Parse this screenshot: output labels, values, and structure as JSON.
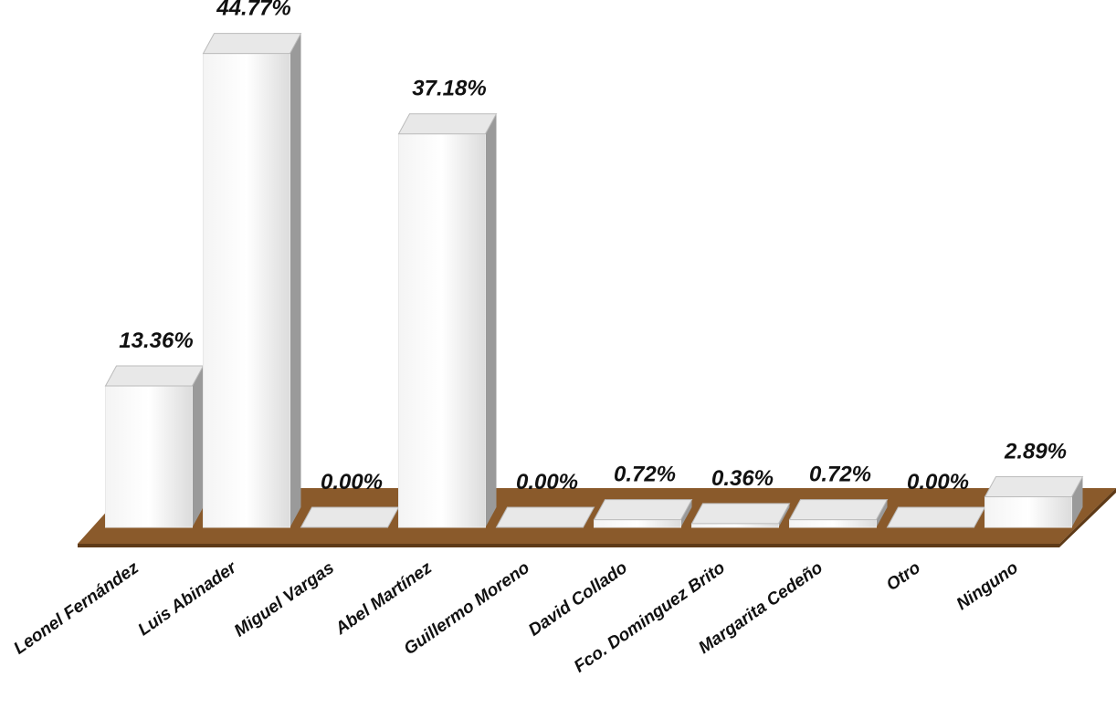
{
  "chart_data": {
    "type": "bar",
    "categories": [
      "Leonel Fernández",
      "Luis Abinader",
      "Miguel Vargas",
      "Abel Martínez",
      "Guillermo Moreno",
      "David Collado",
      "Fco. Dominguez Brito",
      "Margarita Cedeño",
      "Otro",
      "Ninguno"
    ],
    "values": [
      13.36,
      44.77,
      0.0,
      37.18,
      0.0,
      0.72,
      0.36,
      0.72,
      0.0,
      2.89
    ],
    "value_labels": [
      "13.36%",
      "44.77%",
      "0.00%",
      "37.18%",
      "0.00%",
      "0.72%",
      "0.36%",
      "0.72%",
      "0.00%",
      "2.89%"
    ],
    "color": "#e8e8e8"
  }
}
